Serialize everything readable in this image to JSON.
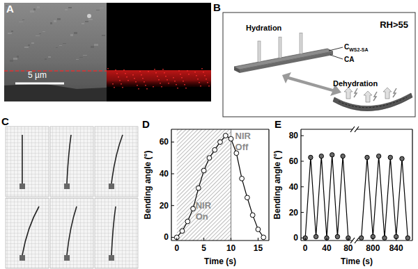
{
  "panels": {
    "A": {
      "label": "A",
      "scale_bar": "5 µm"
    },
    "B": {
      "label": "B",
      "condition": "RH>55",
      "hydration": "Hydration",
      "dehydration": "Dehydration",
      "layer_top": "C",
      "layer_top_sub": "WS2-SA",
      "layer_bottom": "CA"
    },
    "C": {
      "label": "C"
    },
    "D": {
      "label": "D"
    },
    "E": {
      "label": "E"
    }
  },
  "chart_data": [
    {
      "type": "line",
      "xlabel": "Time (s)",
      "ylabel": "Bending angle (°)",
      "x": [
        0,
        1,
        2,
        3,
        4,
        5,
        6,
        7,
        8,
        9,
        10,
        11,
        12,
        13,
        14,
        15,
        16
      ],
      "values": [
        0,
        4,
        10,
        18,
        31,
        42,
        50,
        55,
        60,
        64,
        62,
        53,
        37,
        25,
        14,
        5,
        0
      ],
      "xlim": [
        -1,
        17
      ],
      "ylim": [
        -2,
        68
      ],
      "xticks": [
        0,
        5,
        10,
        15
      ],
      "yticks": [
        0,
        20,
        40,
        60
      ],
      "shaded_region": [
        0,
        10
      ],
      "annotations": [
        "NIR On",
        "NIR Off"
      ],
      "color": "#000000",
      "marker": "open-circle",
      "line_style": "solid"
    },
    {
      "type": "line",
      "xlabel": "Time (s)",
      "ylabel": "Bending angle (°)",
      "x": [
        0,
        10,
        20,
        30,
        40,
        50,
        60,
        70,
        80
      ],
      "values": [
        0,
        63,
        1,
        64,
        0,
        65,
        1,
        64,
        0
      ],
      "xlim": [
        -8,
        88
      ],
      "ylim": [
        -2,
        85
      ],
      "xticks": [
        0,
        40,
        80
      ],
      "yticks": [
        0,
        20,
        40,
        60,
        80
      ],
      "color": "#000000",
      "marker": "filled-circle",
      "line_style": "solid"
    },
    {
      "type": "line",
      "x": [
        780,
        790,
        800,
        810,
        820,
        830,
        840,
        850,
        860
      ],
      "values": [
        0,
        63,
        1,
        64,
        0,
        63,
        1,
        62,
        0
      ],
      "xlim": [
        772,
        868
      ],
      "ylim": [
        -2,
        85
      ],
      "xticks": [
        800,
        840
      ],
      "tick_labels": "x",
      "color": "#000000",
      "marker": "filled-circle",
      "line_style": "solid"
    }
  ]
}
